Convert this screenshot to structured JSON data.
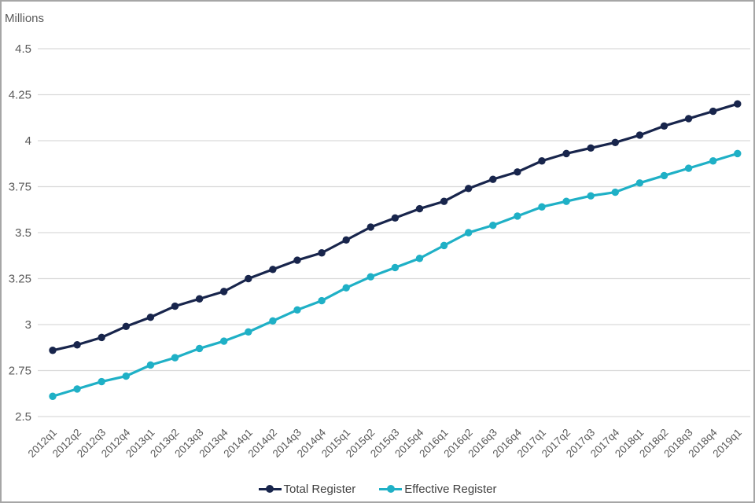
{
  "unit_label": "Millions",
  "colors": {
    "background": "#ffffff",
    "frame_border": "#a6a6a6",
    "gridline": "#d9d9d9",
    "tick_text": "#595959",
    "legend_text": "#404040",
    "total_register": "#18254c",
    "effective_register": "#1fb0c6"
  },
  "chart_data": {
    "type": "line",
    "title": "",
    "xlabel": "",
    "ylabel": "Millions",
    "ylim": [
      2.5,
      4.5
    ],
    "y_tick_labels": [
      "2.5",
      "2.75",
      "3",
      "3.25",
      "3.5",
      "3.75",
      "4",
      "4.25",
      "4.5"
    ],
    "grid": "horizontal",
    "legend_position": "bottom-center",
    "x_tick_rotation_degrees": -45,
    "categories": [
      "2012q1",
      "2012q2",
      "2012q3",
      "2012q4",
      "2013q1",
      "2013q2",
      "2013q3",
      "2013q4",
      "2014q1",
      "2014q2",
      "2014q3",
      "2014q4",
      "2015q1",
      "2015q2",
      "2015q3",
      "2015q4",
      "2016q1",
      "2016q2",
      "2016q3",
      "2016q4",
      "2017q1",
      "2017q2",
      "2017q3",
      "2017q4",
      "2018q1",
      "2018q2",
      "2018q3",
      "2018q4",
      "2019q1"
    ],
    "series": [
      {
        "name": "Total Register",
        "color": "#18254c",
        "marker": "circle",
        "values": [
          2.86,
          2.89,
          2.93,
          2.99,
          3.04,
          3.1,
          3.14,
          3.18,
          3.25,
          3.3,
          3.35,
          3.39,
          3.46,
          3.53,
          3.58,
          3.63,
          3.67,
          3.74,
          3.79,
          3.83,
          3.89,
          3.93,
          3.96,
          3.99,
          4.03,
          4.08,
          4.12,
          4.16,
          4.2
        ]
      },
      {
        "name": "Effective Register",
        "color": "#1fb0c6",
        "marker": "circle",
        "values": [
          2.61,
          2.65,
          2.69,
          2.72,
          2.78,
          2.82,
          2.87,
          2.91,
          2.96,
          3.02,
          3.08,
          3.13,
          3.2,
          3.26,
          3.31,
          3.36,
          3.43,
          3.5,
          3.54,
          3.59,
          3.64,
          3.67,
          3.7,
          3.72,
          3.77,
          3.81,
          3.85,
          3.89,
          3.93
        ]
      }
    ]
  }
}
